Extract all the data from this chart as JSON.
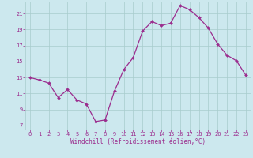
{
  "x": [
    0,
    1,
    2,
    3,
    4,
    5,
    6,
    7,
    8,
    9,
    10,
    11,
    12,
    13,
    14,
    15,
    16,
    17,
    18,
    19,
    20,
    21,
    22,
    23
  ],
  "y": [
    13,
    12.7,
    12.3,
    10.5,
    11.5,
    10.2,
    9.7,
    7.5,
    7.7,
    11.3,
    14.0,
    15.5,
    18.8,
    20.0,
    19.5,
    19.8,
    22.0,
    21.5,
    20.5,
    19.2,
    17.2,
    15.8,
    15.1,
    13.3
  ],
  "line_color": "#9b2d8e",
  "marker": "D",
  "marker_size": 2.0,
  "bg_color": "#cce8ee",
  "grid_color": "#a8cccc",
  "xlabel": "Windchill (Refroidissement éolien,°C)",
  "xlim": [
    -0.5,
    23.5
  ],
  "ylim": [
    6.5,
    22.5
  ],
  "yticks": [
    7,
    9,
    11,
    13,
    15,
    17,
    19,
    21
  ],
  "xticks": [
    0,
    1,
    2,
    3,
    4,
    5,
    6,
    7,
    8,
    9,
    10,
    11,
    12,
    13,
    14,
    15,
    16,
    17,
    18,
    19,
    20,
    21,
    22,
    23
  ],
  "tick_label_color": "#9b2d8e",
  "tick_label_size": 5.0,
  "xlabel_size": 5.5,
  "xlabel_color": "#9b2d8e",
  "line_width": 0.9
}
